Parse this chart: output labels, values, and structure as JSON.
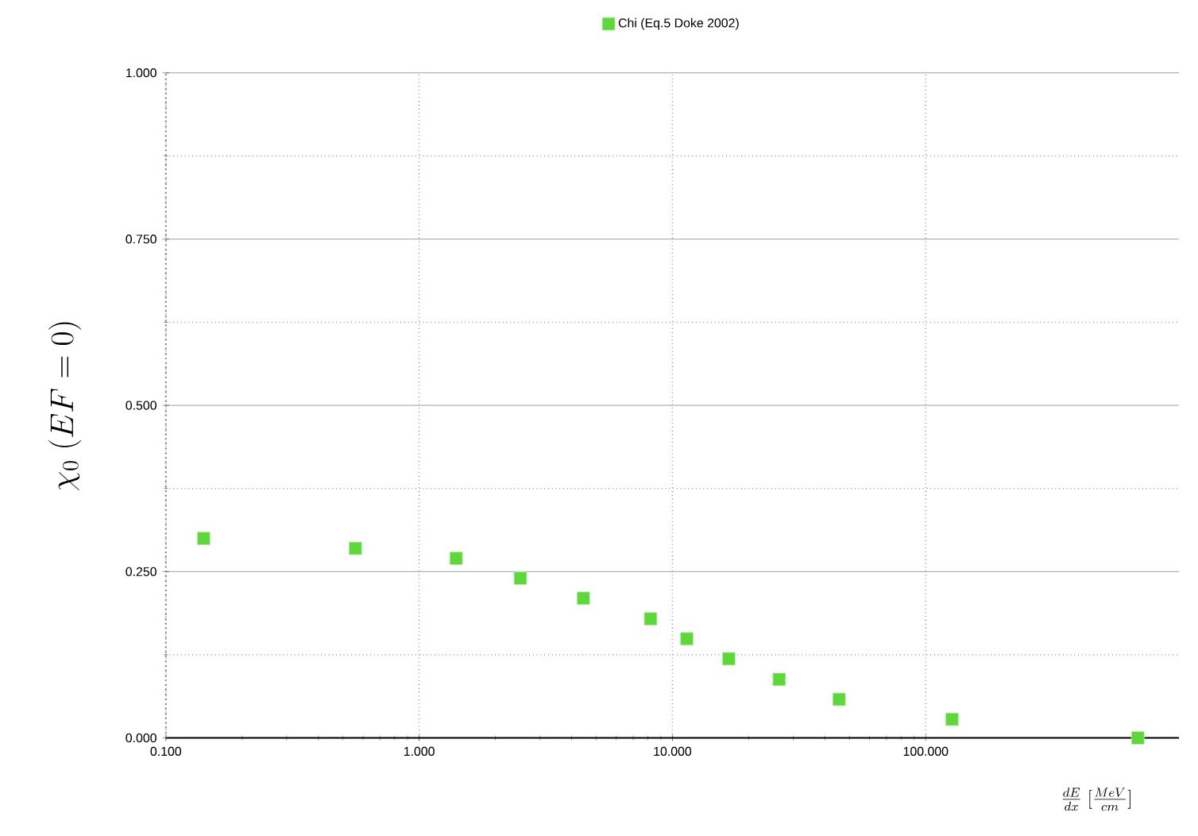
{
  "chart_data": {
    "type": "scatter",
    "xlabel": "\\frac{dE}{dx}\\;[\\frac{MeV}{cm}]",
    "ylabel": "\\chi_0\\;(EF = 0)",
    "x": [
      0.141,
      0.56,
      1.4,
      2.51,
      4.45,
      8.2,
      11.4,
      16.7,
      26.4,
      45.5,
      127,
      688
    ],
    "series": [
      {
        "name": "Chi (Eq.5 Doke 2002)",
        "color": "#5fd63c",
        "values": [
          0.3,
          0.285,
          0.27,
          0.24,
          0.21,
          0.179,
          0.149,
          0.119,
          0.088,
          0.058,
          0.028,
          0.0
        ]
      }
    ],
    "log": "x",
    "xlim": [
      0.1,
      1000
    ],
    "xticks": [
      {
        "value": 0.1,
        "label": "0.100"
      },
      {
        "value": 1,
        "label": "1.000"
      },
      {
        "value": 10,
        "label": "10.000"
      },
      {
        "value": 100,
        "label": "100.000"
      }
    ],
    "ylim": [
      0,
      1
    ],
    "yticks": [
      {
        "value": 0,
        "label": "0.000"
      },
      {
        "value": 0.125,
        "label": null
      },
      {
        "value": 0.25,
        "label": "0.250"
      },
      {
        "value": 0.375,
        "label": null
      },
      {
        "value": 0.5,
        "label": "0.500"
      },
      {
        "value": 0.625,
        "label": null
      },
      {
        "value": 0.75,
        "label": "0.750"
      },
      {
        "value": 0.875,
        "label": null
      },
      {
        "value": 1,
        "label": "1.000"
      }
    ],
    "grid": true,
    "legend": "top",
    "marker": "square"
  }
}
